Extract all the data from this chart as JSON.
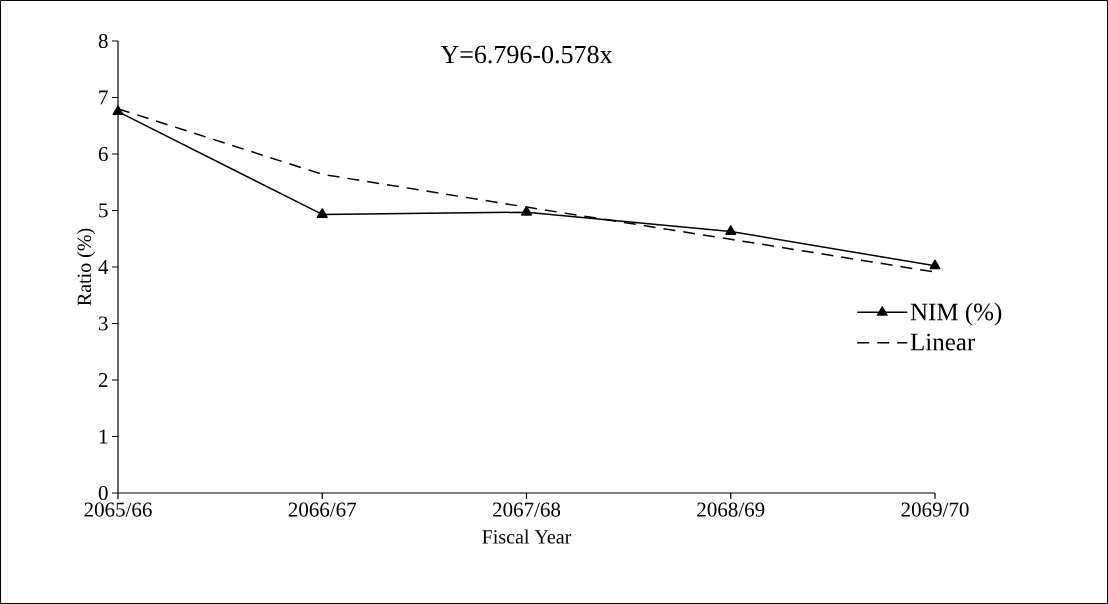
{
  "chart_data": {
    "type": "line",
    "xlabel": "Fiscal Year",
    "ylabel": "Ratio (%)",
    "categories": [
      "2065/66",
      "2066/67",
      "2067/68",
      "2068/69",
      "2069/70"
    ],
    "series": [
      {
        "name": "NIM (%)",
        "color": "#000000",
        "values": [
          6.75,
          4.93,
          4.97,
          4.63,
          4.02
        ],
        "marker": "triangle",
        "line_style": "solid"
      },
      {
        "name": "Linear",
        "color": "#000000",
        "values": [
          6.8,
          5.64,
          5.06,
          4.49,
          3.91
        ],
        "marker": "none",
        "line_style": "dashed"
      }
    ],
    "ylim": [
      0,
      8
    ],
    "yticks": [
      0,
      1,
      2,
      3,
      4,
      5,
      6,
      7,
      8
    ],
    "annotations": [
      "Y=6.796-0.578x"
    ],
    "legend": "right",
    "grid": false
  }
}
